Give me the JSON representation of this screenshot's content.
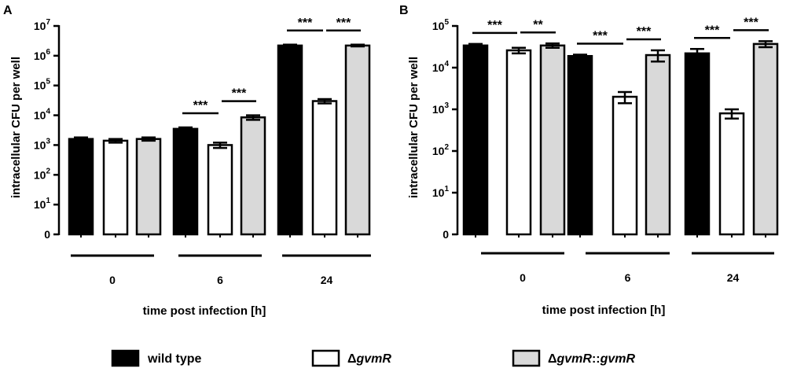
{
  "legend": [
    {
      "name": "wild type",
      "label_parts": [
        {
          "t": "wild type",
          "it": false
        }
      ],
      "fill": "#000000"
    },
    {
      "name": "ΔgvmR",
      "label_parts": [
        {
          "t": "Δ",
          "it": false
        },
        {
          "t": "gvmR",
          "it": true
        }
      ],
      "fill": "#ffffff"
    },
    {
      "name": "ΔgvmR::gvmR",
      "label_parts": [
        {
          "t": "Δ",
          "it": false
        },
        {
          "t": "gvmR",
          "it": true
        },
        {
          "t": "::",
          "it": false
        },
        {
          "t": "gvmR",
          "it": true
        }
      ],
      "fill": "#d9d9d9"
    }
  ],
  "colors": {
    "wild_type": "#000000",
    "delta": "#ffffff",
    "complemented": "#d9d9d9",
    "axis": "#000000"
  },
  "chart_data": [
    {
      "panel": "A",
      "type": "bar",
      "yscale": "log",
      "ylabel": "intracellular CFU per well",
      "xlabel": "time post infection [h]",
      "categories": [
        "0",
        "6",
        "24"
      ],
      "ylim_exp": [
        0,
        7
      ],
      "ytick_labels": [
        {
          "base": "0",
          "sup": ""
        },
        {
          "base": "10",
          "sup": "1"
        },
        {
          "base": "10",
          "sup": "2"
        },
        {
          "base": "10",
          "sup": "3"
        },
        {
          "base": "10",
          "sup": "4"
        },
        {
          "base": "10",
          "sup": "5"
        },
        {
          "base": "10",
          "sup": "6"
        },
        {
          "base": "10",
          "sup": "7"
        }
      ],
      "series": [
        {
          "name": "wild type",
          "values": [
            1600,
            3500,
            2200000
          ],
          "errors": [
            200,
            400,
            150000
          ]
        },
        {
          "name": "ΔgvmR",
          "values": [
            1400,
            1000,
            30000
          ],
          "errors": [
            200,
            200,
            5000
          ]
        },
        {
          "name": "ΔgvmR::gvmR",
          "values": [
            1600,
            8500,
            2200000
          ],
          "errors": [
            200,
            1500,
            150000
          ]
        }
      ],
      "significance": [
        {
          "group": 1,
          "from": 0,
          "to": 1,
          "label": "***"
        },
        {
          "group": 1,
          "from": 1,
          "to": 2,
          "label": "***"
        },
        {
          "group": 2,
          "from": 0,
          "to": 1,
          "label": "***"
        },
        {
          "group": 2,
          "from": 1,
          "to": 2,
          "label": "***"
        }
      ]
    },
    {
      "panel": "B",
      "type": "bar",
      "yscale": "log",
      "ylabel": "intracellular CFU per well",
      "xlabel": "time post infection [h]",
      "categories": [
        "0",
        "6",
        "24"
      ],
      "ylim_exp": [
        0,
        5
      ],
      "ytick_labels": [
        {
          "base": "0",
          "sup": ""
        },
        {
          "base": "10",
          "sup": "1"
        },
        {
          "base": "10",
          "sup": "2"
        },
        {
          "base": "10",
          "sup": "3"
        },
        {
          "base": "10",
          "sup": "4"
        },
        {
          "base": "10",
          "sup": "5"
        }
      ],
      "series": [
        {
          "name": "wild type",
          "values": [
            34000,
            19000,
            22000
          ],
          "errors": [
            3000,
            1500,
            6000
          ]
        },
        {
          "name": "ΔgvmR",
          "values": [
            26000,
            2000,
            800
          ],
          "errors": [
            4000,
            600,
            200
          ]
        },
        {
          "name": "ΔgvmR::gvmR",
          "values": [
            34000,
            20000,
            37000
          ],
          "errors": [
            4000,
            6000,
            6000
          ]
        }
      ],
      "significance": [
        {
          "group": 0,
          "from": 0,
          "to": 1,
          "label": "***"
        },
        {
          "group": 0,
          "from": 1,
          "to": 2,
          "label": "**"
        },
        {
          "group": 1,
          "from": 0,
          "to": 1,
          "label": "***"
        },
        {
          "group": 1,
          "from": 1,
          "to": 2,
          "label": "***"
        },
        {
          "group": 2,
          "from": 0,
          "to": 1,
          "label": "***"
        },
        {
          "group": 2,
          "from": 1,
          "to": 2,
          "label": "***"
        }
      ]
    }
  ]
}
